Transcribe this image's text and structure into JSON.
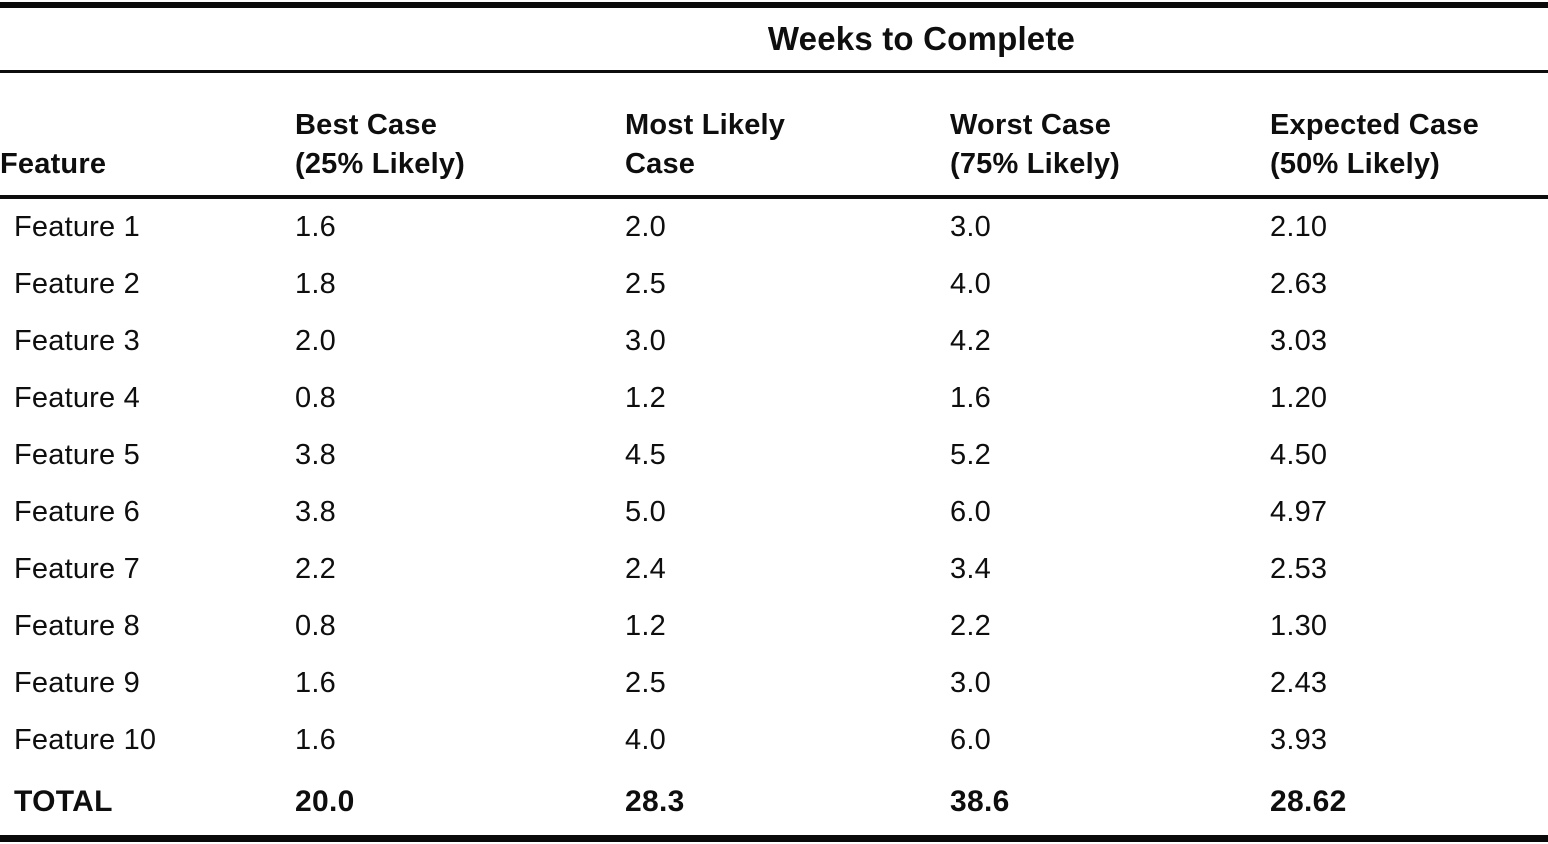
{
  "page": {
    "background": "#ffffff",
    "ink": "#0e0e0e"
  },
  "table": {
    "spanner": "Weeks to Complete",
    "headers": {
      "feature": "Feature",
      "best": {
        "line1": "Best Case",
        "line2": "(25% Likely)"
      },
      "most": {
        "line1": "Most Likely",
        "line2": "Case"
      },
      "worst": {
        "line1": "Worst Case",
        "line2": "(75% Likely)"
      },
      "expected": {
        "line1": "Expected Case",
        "line2": "(50% Likely)"
      }
    },
    "rows": [
      {
        "feature": "Feature 1",
        "best": "1.6",
        "most": "2.0",
        "worst": "3.0",
        "expected": "2.10"
      },
      {
        "feature": "Feature 2",
        "best": "1.8",
        "most": "2.5",
        "worst": "4.0",
        "expected": "2.63"
      },
      {
        "feature": "Feature 3",
        "best": "2.0",
        "most": "3.0",
        "worst": "4.2",
        "expected": "3.03"
      },
      {
        "feature": "Feature 4",
        "best": "0.8",
        "most": "1.2",
        "worst": "1.6",
        "expected": "1.20"
      },
      {
        "feature": "Feature 5",
        "best": "3.8",
        "most": "4.5",
        "worst": "5.2",
        "expected": "4.50"
      },
      {
        "feature": "Feature 6",
        "best": "3.8",
        "most": "5.0",
        "worst": "6.0",
        "expected": "4.97"
      },
      {
        "feature": "Feature 7",
        "best": "2.2",
        "most": "2.4",
        "worst": "3.4",
        "expected": "2.53"
      },
      {
        "feature": "Feature 8",
        "best": "0.8",
        "most": "1.2",
        "worst": "2.2",
        "expected": "1.30"
      },
      {
        "feature": "Feature 9",
        "best": "1.6",
        "most": "2.5",
        "worst": "3.0",
        "expected": "2.43"
      },
      {
        "feature": "Feature 10",
        "best": "1.6",
        "most": "4.0",
        "worst": "6.0",
        "expected": "3.93"
      }
    ],
    "total": {
      "feature": "TOTAL",
      "best": "20.0",
      "most": "28.3",
      "worst": "38.6",
      "expected": "28.62"
    }
  },
  "chart_data": {
    "type": "table",
    "title": "Weeks to Complete",
    "columns": [
      "Feature",
      "Best Case (25% Likely)",
      "Most Likely Case",
      "Worst Case (75% Likely)",
      "Expected Case (50% Likely)"
    ],
    "rows": [
      [
        "Feature 1",
        1.6,
        2.0,
        3.0,
        2.1
      ],
      [
        "Feature 2",
        1.8,
        2.5,
        4.0,
        2.63
      ],
      [
        "Feature 3",
        2.0,
        3.0,
        4.2,
        3.03
      ],
      [
        "Feature 4",
        0.8,
        1.2,
        1.6,
        1.2
      ],
      [
        "Feature 5",
        3.8,
        4.5,
        5.2,
        4.5
      ],
      [
        "Feature 6",
        3.8,
        5.0,
        6.0,
        4.97
      ],
      [
        "Feature 7",
        2.2,
        2.4,
        3.4,
        2.53
      ],
      [
        "Feature 8",
        0.8,
        1.2,
        2.2,
        1.3
      ],
      [
        "Feature 9",
        1.6,
        2.5,
        3.0,
        2.43
      ],
      [
        "Feature 10",
        1.6,
        4.0,
        6.0,
        3.93
      ],
      [
        "TOTAL",
        20.0,
        28.3,
        38.6,
        28.62
      ]
    ]
  }
}
